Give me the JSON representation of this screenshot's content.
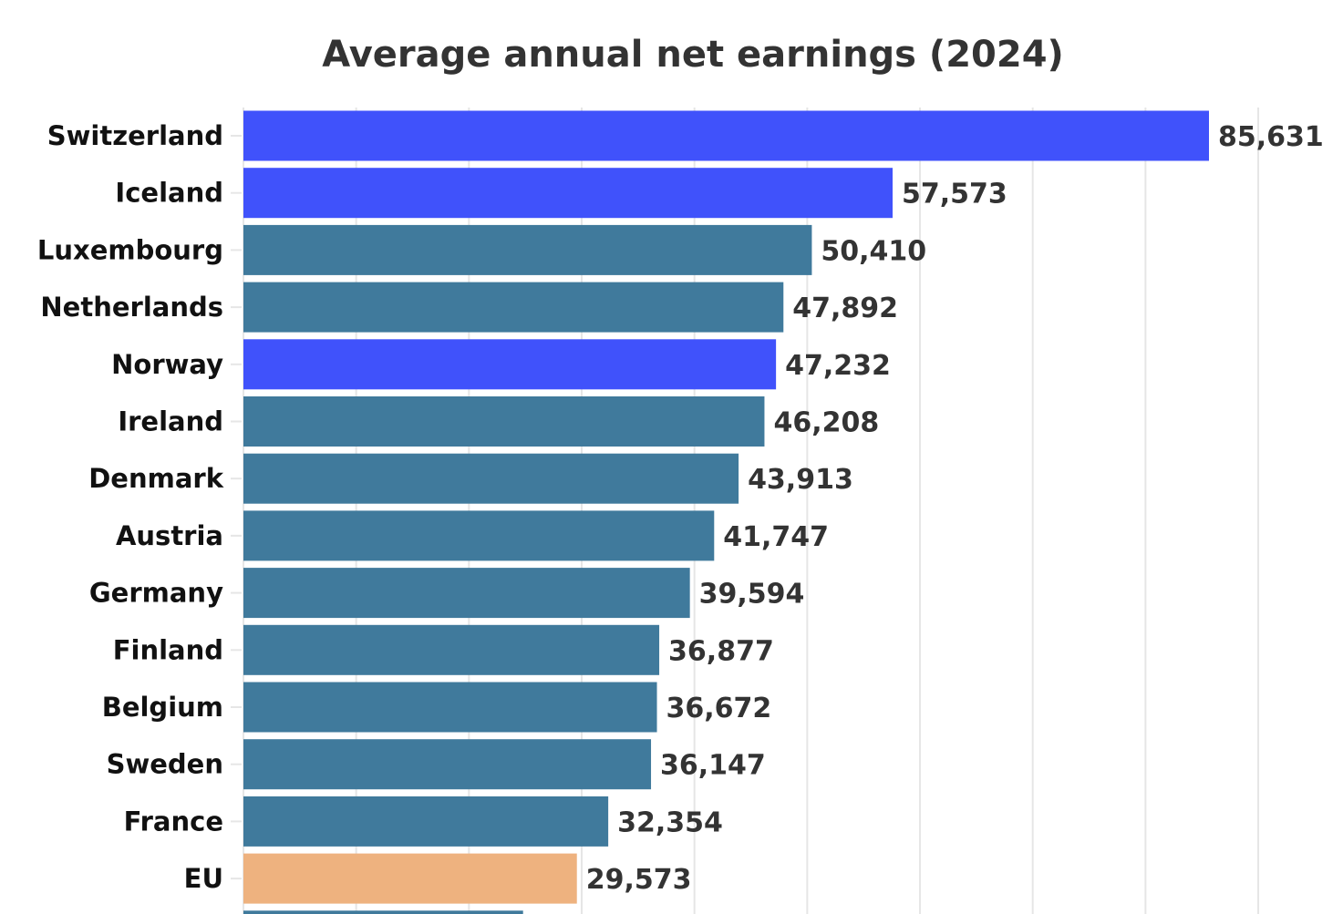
{
  "chart_data": {
    "type": "bar",
    "orientation": "horizontal",
    "title": "Average annual net earnings (2024)",
    "xlabel": "",
    "ylabel": "",
    "xlim": [
      0,
      90000
    ],
    "grid": true,
    "grid_step": 10000,
    "categories": [
      "Switzerland",
      "Iceland",
      "Luxembourg",
      "Netherlands",
      "Norway",
      "Ireland",
      "Denmark",
      "Austria",
      "Germany",
      "Finland",
      "Belgium",
      "Sweden",
      "France",
      "EU",
      ""
    ],
    "values": [
      85631,
      57573,
      50410,
      47892,
      47232,
      46208,
      43913,
      41747,
      39594,
      36877,
      36672,
      36147,
      32354,
      29573,
      24800
    ],
    "data_labels": [
      "85,631",
      "57,573",
      "50,410",
      "47,892",
      "47,232",
      "46,208",
      "43,913",
      "41,747",
      "39,594",
      "36,877",
      "36,672",
      "36,147",
      "32,354",
      "29,573",
      ""
    ],
    "bar_colors": [
      "#3a4cfb",
      "#3a4cfb",
      "#3a7699",
      "#3a7699",
      "#3a4cfb",
      "#3a7699",
      "#3a7699",
      "#3a7699",
      "#3a7699",
      "#3a7699",
      "#3a7699",
      "#3a7699",
      "#3a7699",
      "#edb07b",
      "#3a7699"
    ]
  }
}
